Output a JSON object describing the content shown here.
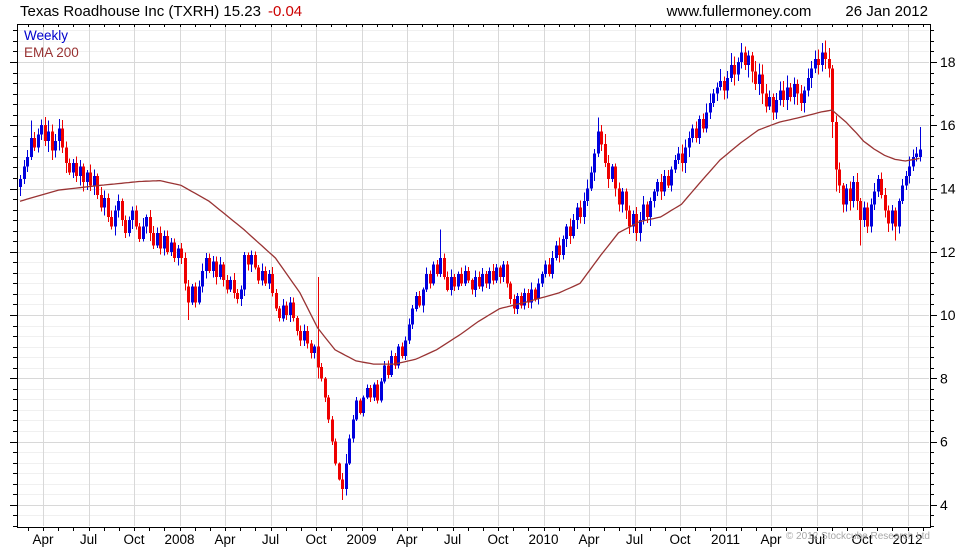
{
  "header": {
    "title_main": "Texas Roadhouse Inc (TXRH) 15.23",
    "title_change": "-0.04",
    "website": "www.fullermoney.com",
    "date": "26 Jan 2012"
  },
  "legend": {
    "series1": "Weekly",
    "series2": "EMA 200"
  },
  "footer": {
    "copyright": "© 2012 Stockcube Research Ltd"
  },
  "colors": {
    "up": "#0000dd",
    "down": "#ee0000",
    "ema": "#993333",
    "grid_major": "#d8d8d8",
    "grid_minor": "#f0f0f0",
    "axis": "#000000",
    "change_text": "#cc0000",
    "weekly_text": "#0000cc",
    "copyright_text": "#a8a8a8"
  },
  "chart_data": {
    "type": "candlestick",
    "title": "Texas Roadhouse Inc (TXRH)",
    "interval": "Weekly",
    "overlay": "EMA 200",
    "last_close": 15.23,
    "change": -0.04,
    "date_of_quote": "26 Jan 2012",
    "y_axis": {
      "ticks": [
        4,
        6,
        8,
        10,
        12,
        14,
        16,
        18
      ],
      "top_price": 19.2,
      "bottom_price": 3.3
    },
    "x_axis": {
      "labels": [
        "Apr",
        "Jul",
        "Oct",
        "2008",
        "Apr",
        "Jul",
        "Oct",
        "2009",
        "Apr",
        "Jul",
        "Oct",
        "2010",
        "Apr",
        "Jul",
        "Oct",
        "2011",
        "Apr",
        "Jul",
        "Oct",
        "2012"
      ],
      "start": "Feb 2007",
      "weeks": 258
    },
    "closes": [
      14.3,
      14.7,
      15.0,
      15.6,
      15.3,
      15.7,
      16.0,
      15.5,
      15.8,
      15.2,
      15.5,
      15.9,
      15.3,
      14.8,
      14.5,
      14.8,
      14.4,
      14.7,
      14.2,
      14.5,
      14.1,
      14.4,
      13.8,
      13.4,
      13.7,
      13.1,
      12.8,
      13.3,
      13.6,
      13.0,
      12.6,
      13.0,
      13.3,
      12.8,
      12.4,
      12.8,
      13.1,
      12.6,
      12.2,
      12.6,
      12.1,
      12.5,
      12.0,
      12.3,
      11.8,
      12.1,
      11.8,
      11.0,
      10.4,
      10.9,
      10.4,
      10.9,
      11.4,
      11.8,
      11.4,
      11.7,
      11.2,
      11.6,
      11.1,
      10.8,
      11.1,
      10.7,
      10.5,
      10.8,
      11.9,
      11.6,
      11.9,
      11.5,
      11.1,
      11.4,
      11.0,
      11.3,
      10.7,
      10.2,
      9.9,
      10.3,
      10.0,
      10.4,
      9.9,
      9.5,
      9.2,
      9.5,
      9.1,
      8.8,
      9.0,
      8.35,
      8.0,
      7.4,
      6.7,
      6.0,
      5.3,
      4.8,
      4.5,
      5.3,
      6.1,
      6.7,
      7.3,
      6.9,
      7.4,
      7.7,
      7.4,
      7.8,
      7.3,
      7.9,
      8.4,
      8.1,
      8.7,
      8.4,
      9.0,
      8.7,
      9.2,
      9.7,
      10.2,
      10.6,
      10.3,
      10.8,
      11.3,
      11.0,
      11.6,
      11.3,
      11.8,
      11.2,
      10.8,
      11.2,
      10.9,
      11.3,
      11.0,
      11.4,
      11.1,
      10.8,
      11.2,
      10.9,
      11.3,
      11.0,
      11.4,
      11.1,
      11.5,
      11.2,
      11.6,
      11.0,
      10.5,
      10.2,
      10.6,
      10.3,
      10.7,
      10.4,
      10.8,
      10.5,
      11.0,
      11.3,
      11.6,
      11.3,
      11.8,
      12.2,
      11.9,
      12.4,
      12.8,
      12.5,
      13.0,
      13.4,
      13.1,
      13.6,
      14.0,
      14.5,
      15.1,
      15.8,
      15.4,
      14.8,
      14.3,
      14.7,
      14.0,
      13.5,
      13.9,
      13.3,
      12.8,
      13.2,
      12.6,
      13.0,
      13.5,
      13.1,
      13.6,
      13.9,
      14.2,
      13.9,
      14.4,
      14.1,
      14.6,
      14.9,
      15.1,
      14.8,
      15.3,
      15.6,
      15.9,
      15.6,
      16.2,
      15.9,
      16.4,
      16.7,
      17.0,
      17.2,
      17.4,
      17.1,
      17.5,
      17.9,
      17.6,
      18.0,
      18.3,
      17.9,
      18.2,
      17.7,
      17.3,
      17.6,
      17.0,
      16.6,
      16.9,
      16.4,
      16.8,
      17.1,
      16.8,
      17.2,
      16.9,
      17.3,
      17.0,
      16.7,
      17.1,
      17.5,
      17.8,
      18.1,
      17.9,
      18.3,
      18.1,
      17.8,
      16.1,
      14.6,
      14.1,
      13.5,
      14.0,
      13.6,
      14.2,
      13.6,
      13.0,
      13.4,
      12.8,
      13.5,
      13.9,
      14.3,
      13.8,
      13.3,
      12.9,
      13.3,
      12.8,
      13.6,
      14.1,
      14.4,
      14.7,
      15.0,
      15.1,
      15.23
    ],
    "candle_overrides": {
      "3": [
        15.0,
        16.15,
        14.9,
        15.6
      ],
      "11": [
        15.5,
        16.2,
        15.2,
        15.9
      ],
      "48": [
        10.9,
        11.1,
        9.85,
        10.4
      ],
      "64": [
        10.8,
        12.0,
        10.6,
        11.9
      ],
      "85": [
        9.0,
        11.2,
        8.0,
        8.35
      ],
      "92": [
        4.8,
        5.0,
        4.15,
        4.5
      ],
      "93": [
        4.5,
        5.6,
        4.3,
        5.3
      ],
      "120": [
        11.3,
        12.7,
        11.2,
        11.8
      ],
      "165": [
        15.1,
        16.25,
        15.0,
        15.8
      ],
      "206": [
        18.0,
        18.6,
        17.8,
        18.3
      ],
      "229": [
        17.9,
        18.6,
        17.7,
        18.3
      ],
      "232": [
        17.8,
        17.9,
        15.6,
        16.1
      ],
      "233": [
        16.1,
        16.3,
        13.9,
        14.6
      ],
      "240": [
        13.6,
        13.7,
        12.2,
        13.0
      ],
      "250": [
        13.3,
        13.4,
        12.35,
        12.8
      ],
      "257": [
        15.0,
        15.95,
        14.85,
        15.23
      ]
    },
    "ema_anchors": [
      [
        0,
        13.6
      ],
      [
        11,
        13.95
      ],
      [
        23,
        14.1
      ],
      [
        34,
        14.22
      ],
      [
        40,
        14.25
      ],
      [
        46,
        14.1
      ],
      [
        54,
        13.6
      ],
      [
        64,
        12.7
      ],
      [
        73,
        11.8
      ],
      [
        80,
        10.7
      ],
      [
        85,
        9.6
      ],
      [
        90,
        8.9
      ],
      [
        96,
        8.55
      ],
      [
        101,
        8.45
      ],
      [
        107,
        8.45
      ],
      [
        113,
        8.6
      ],
      [
        119,
        8.9
      ],
      [
        126,
        9.4
      ],
      [
        131,
        9.8
      ],
      [
        137,
        10.2
      ],
      [
        146,
        10.45
      ],
      [
        154,
        10.7
      ],
      [
        160,
        11.0
      ],
      [
        166,
        11.9
      ],
      [
        171,
        12.6
      ],
      [
        177,
        12.95
      ],
      [
        183,
        13.1
      ],
      [
        189,
        13.5
      ],
      [
        194,
        14.15
      ],
      [
        200,
        14.9
      ],
      [
        206,
        15.45
      ],
      [
        211,
        15.85
      ],
      [
        217,
        16.1
      ],
      [
        223,
        16.25
      ],
      [
        229,
        16.42
      ],
      [
        232,
        16.48
      ],
      [
        236,
        16.1
      ],
      [
        239,
        15.75
      ],
      [
        241,
        15.5
      ],
      [
        244,
        15.25
      ],
      [
        247,
        15.05
      ],
      [
        250,
        14.92
      ],
      [
        253,
        14.87
      ],
      [
        257,
        14.95
      ]
    ]
  }
}
